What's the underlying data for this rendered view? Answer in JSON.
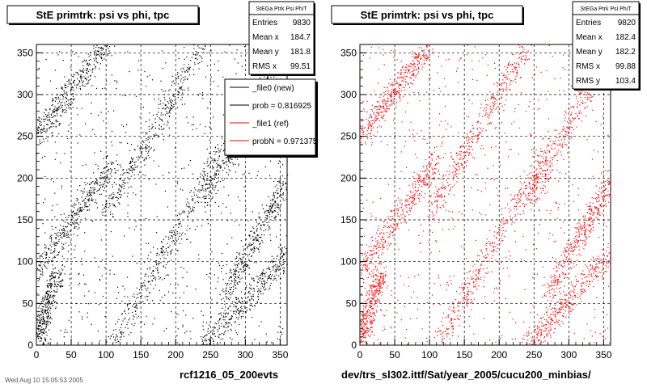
{
  "window": {
    "background": "#ffffff"
  },
  "left_caption": "rcf1216_05_200evts",
  "right_caption": "dev/trs_sl302.ittf/Sat/year_2005/cucu200_minbias/",
  "bottom_left_stamp": "Wed Aug 10 15:05:53 2005",
  "legend": {
    "entries": [
      {
        "label": "_file0 (new)",
        "color": "#000000"
      },
      {
        "label": "prob = 0.816925",
        "color": "#000000"
      },
      {
        "label": "_file1 (ref)",
        "color": "#ff0000"
      },
      {
        "label": "probN = 0.971375",
        "color": "#ff0000"
      }
    ]
  },
  "chart_data": [
    {
      "type": "scatter",
      "title": "StE primtrk: psi vs phi, tpc",
      "xlabel": "",
      "ylabel": "",
      "xlim": [
        0,
        360
      ],
      "ylim": [
        0,
        360
      ],
      "xticks": [
        0,
        50,
        100,
        150,
        200,
        250,
        300,
        350
      ],
      "yticks": [
        0,
        50,
        100,
        150,
        200,
        250,
        300,
        350
      ],
      "grid": true,
      "color": "#000000",
      "stats": {
        "name": "StEGa Ptrk Psi PhiT",
        "rows": [
          {
            "label": "Entries",
            "value": "9830"
          },
          {
            "label": "Mean x",
            "value": "184.7"
          },
          {
            "label": "Mean y",
            "value": "181.8"
          },
          {
            "label": "RMS x",
            "value": "99.51"
          }
        ]
      },
      "bands": [
        {
          "x_start": 0,
          "x_end": 100,
          "y_start": 250,
          "y_end": 360
        },
        {
          "x_start": 100,
          "x_end": 240,
          "y_start": 160,
          "y_end": 360
        },
        {
          "x_start": 240,
          "x_end": 360,
          "y_start": 170,
          "y_end": 360
        },
        {
          "x_start": 0,
          "x_end": 110,
          "y_start": 90,
          "y_end": 220
        },
        {
          "x_start": 110,
          "x_end": 270,
          "y_start": 0,
          "y_end": 240
        },
        {
          "x_start": 270,
          "x_end": 360,
          "y_start": 60,
          "y_end": 200
        },
        {
          "x_start": 0,
          "x_end": 30,
          "y_start": 0,
          "y_end": 90
        },
        {
          "x_start": 240,
          "x_end": 360,
          "y_start": 0,
          "y_end": 110
        }
      ]
    },
    {
      "type": "scatter",
      "title": "StE primtrk: psi vs phi, tpc",
      "xlabel": "",
      "ylabel": "",
      "xlim": [
        0,
        360
      ],
      "ylim": [
        0,
        360
      ],
      "xticks": [
        0,
        50,
        100,
        150,
        200,
        250,
        300,
        350
      ],
      "yticks": [
        0,
        50,
        100,
        150,
        200,
        250,
        300,
        350
      ],
      "grid": true,
      "color": "#ff0000",
      "stats": {
        "name": "StEGa Ptrk Psi PhiT",
        "rows": [
          {
            "label": "Entries",
            "value": "9820"
          },
          {
            "label": "Mean x",
            "value": "182.4"
          },
          {
            "label": "Mean y",
            "value": "182.2"
          },
          {
            "label": "RMS x",
            "value": "99.88"
          },
          {
            "label": "RMS y",
            "value": "103.4"
          }
        ]
      },
      "bands": [
        {
          "x_start": 0,
          "x_end": 100,
          "y_start": 250,
          "y_end": 360
        },
        {
          "x_start": 100,
          "x_end": 240,
          "y_start": 160,
          "y_end": 360
        },
        {
          "x_start": 240,
          "x_end": 360,
          "y_start": 170,
          "y_end": 360
        },
        {
          "x_start": 0,
          "x_end": 110,
          "y_start": 90,
          "y_end": 220
        },
        {
          "x_start": 110,
          "x_end": 270,
          "y_start": 0,
          "y_end": 240
        },
        {
          "x_start": 270,
          "x_end": 360,
          "y_start": 60,
          "y_end": 200
        },
        {
          "x_start": 0,
          "x_end": 30,
          "y_start": 0,
          "y_end": 90
        },
        {
          "x_start": 240,
          "x_end": 360,
          "y_start": 0,
          "y_end": 110
        }
      ]
    }
  ]
}
